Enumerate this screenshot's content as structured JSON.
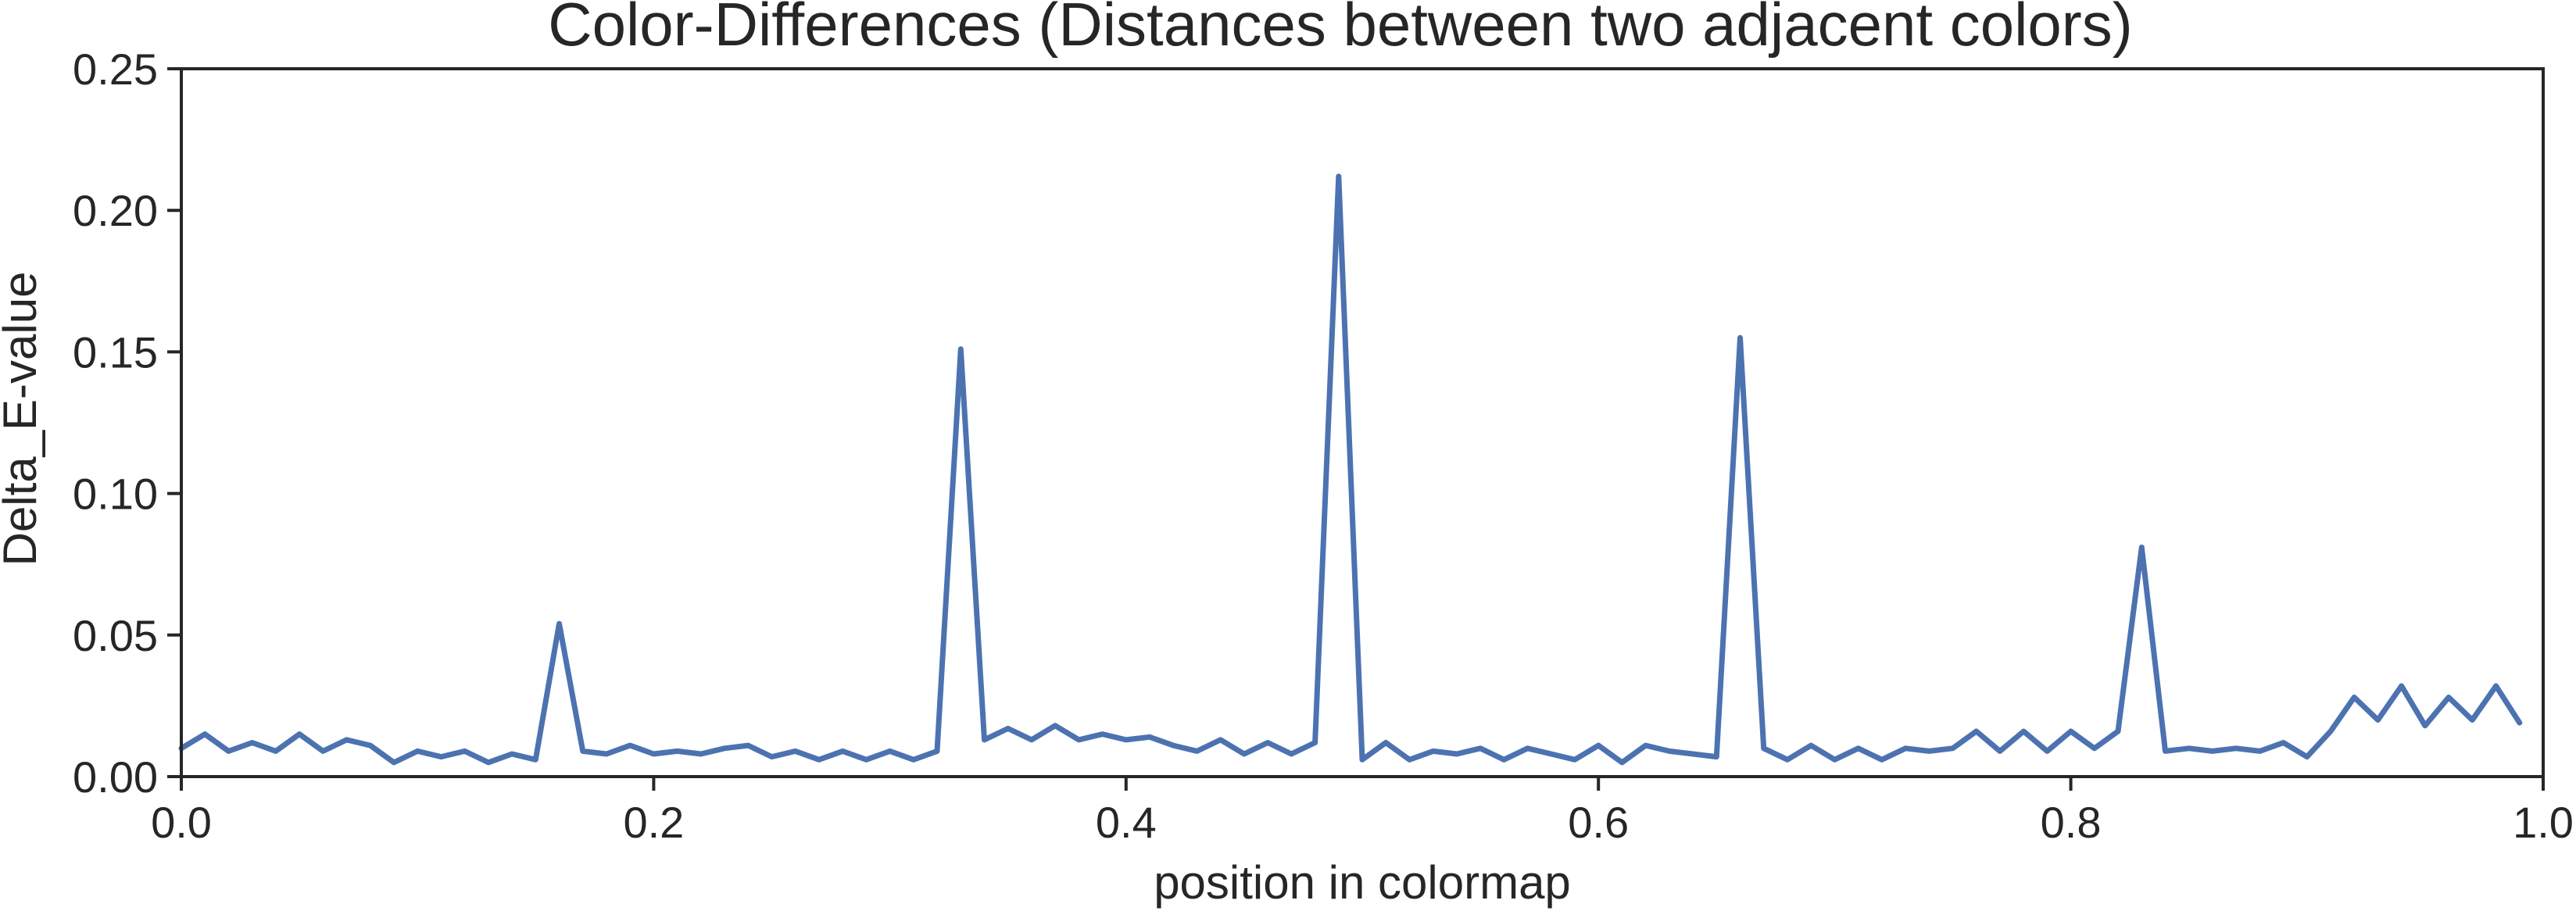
{
  "chart_data": {
    "type": "line",
    "title": "Color-Differences (Distances between two adjacent colors)",
    "xlabel": "position in colormap",
    "ylabel": "Delta_E-value",
    "xlim": [
      0.0,
      1.0
    ],
    "ylim": [
      0.0,
      0.25
    ],
    "grid": false,
    "legend": "none",
    "color": "#4c72b0",
    "x_ticks": [
      "0.0",
      "0.2",
      "0.4",
      "0.6",
      "0.8",
      "1.0"
    ],
    "y_ticks": [
      "0.00",
      "0.05",
      "0.10",
      "0.15",
      "0.20",
      "0.25"
    ],
    "series": [
      {
        "x": [
          0.0,
          0.01,
          0.02,
          0.03,
          0.04,
          0.05,
          0.06,
          0.07,
          0.08,
          0.09,
          0.1,
          0.11,
          0.12,
          0.13,
          0.14,
          0.15,
          0.16,
          0.17,
          0.18,
          0.19,
          0.2,
          0.21,
          0.22,
          0.23,
          0.24,
          0.25,
          0.26,
          0.27,
          0.28,
          0.29,
          0.3,
          0.31,
          0.32,
          0.33,
          0.34,
          0.35,
          0.36,
          0.37,
          0.38,
          0.39,
          0.4,
          0.41,
          0.42,
          0.43,
          0.44,
          0.45,
          0.46,
          0.47,
          0.48,
          0.49,
          0.5,
          0.51,
          0.52,
          0.53,
          0.54,
          0.55,
          0.56,
          0.57,
          0.58,
          0.59,
          0.6,
          0.61,
          0.62,
          0.63,
          0.64,
          0.65,
          0.66,
          0.67,
          0.68,
          0.69,
          0.7,
          0.71,
          0.72,
          0.73,
          0.74,
          0.75,
          0.76,
          0.77,
          0.78,
          0.79,
          0.8,
          0.81,
          0.82,
          0.83,
          0.84,
          0.85,
          0.86,
          0.87,
          0.88,
          0.89,
          0.9,
          0.91,
          0.92,
          0.93,
          0.94,
          0.95,
          0.96,
          0.97,
          0.98,
          0.99
        ],
        "values": [
          0.01,
          0.015,
          0.009,
          0.012,
          0.009,
          0.015,
          0.009,
          0.013,
          0.011,
          0.005,
          0.009,
          0.007,
          0.009,
          0.005,
          0.008,
          0.006,
          0.054,
          0.009,
          0.008,
          0.011,
          0.008,
          0.009,
          0.008,
          0.01,
          0.011,
          0.007,
          0.009,
          0.006,
          0.009,
          0.006,
          0.009,
          0.006,
          0.009,
          0.151,
          0.013,
          0.017,
          0.013,
          0.018,
          0.013,
          0.015,
          0.013,
          0.014,
          0.011,
          0.009,
          0.013,
          0.008,
          0.012,
          0.008,
          0.012,
          0.212,
          0.006,
          0.012,
          0.006,
          0.009,
          0.008,
          0.01,
          0.006,
          0.01,
          0.008,
          0.006,
          0.011,
          0.005,
          0.011,
          0.009,
          0.008,
          0.007,
          0.155,
          0.01,
          0.006,
          0.011,
          0.006,
          0.01,
          0.006,
          0.01,
          0.009,
          0.01,
          0.016,
          0.009,
          0.016,
          0.009,
          0.016,
          0.01,
          0.016,
          0.081,
          0.009,
          0.01,
          0.009,
          0.01,
          0.009,
          0.012,
          0.007,
          0.016,
          0.028,
          0.02,
          0.032,
          0.018,
          0.028,
          0.02,
          0.032,
          0.019
        ]
      }
    ]
  }
}
